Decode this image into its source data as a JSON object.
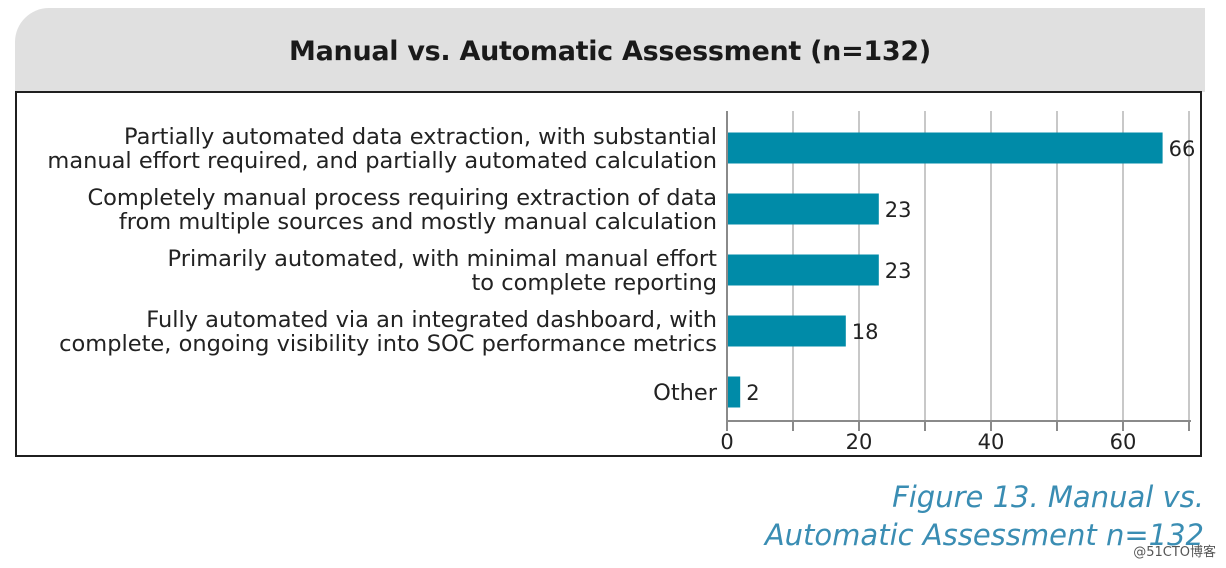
{
  "title": "Manual vs. Automatic Assessment (n=132)",
  "caption": {
    "line1": "Figure 13. Manual vs.",
    "line2": "Automatic Assessment n=132"
  },
  "watermark": "@51CTO博客",
  "colors": {
    "bar": "#008ba8",
    "grid": "#c8c8c8",
    "header_bg": "#e0e0e0",
    "caption": "#3a8db3"
  },
  "chart_data": {
    "type": "bar",
    "orientation": "horizontal",
    "categories": [
      [
        "Partially automated data extraction, with substantial",
        "manual effort required, and partially automated calculation"
      ],
      [
        "Completely manual process requiring extraction of data",
        "from multiple sources and mostly manual calculation"
      ],
      [
        "Primarily automated, with minimal manual effort",
        "to complete reporting"
      ],
      [
        "Fully automated via an integrated dashboard, with",
        "complete, ongoing visibility into SOC performance metrics"
      ],
      [
        "Other"
      ]
    ],
    "values": [
      66,
      23,
      23,
      18,
      2
    ],
    "xlim": [
      0,
      70
    ],
    "xticks": [
      0,
      20,
      40,
      60
    ],
    "grid": true,
    "data_labels": true
  }
}
